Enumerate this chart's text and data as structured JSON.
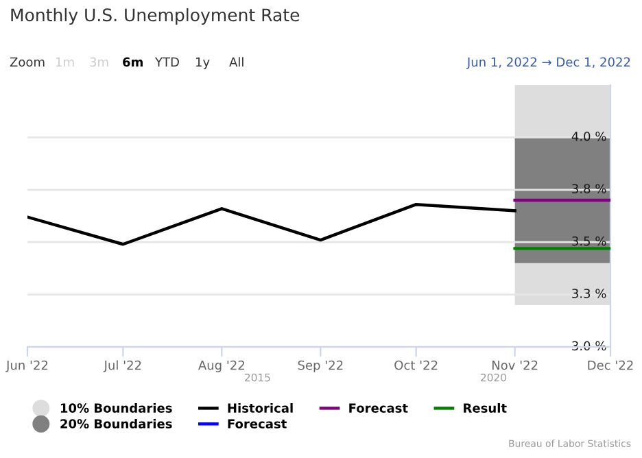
{
  "chart_data": {
    "type": "line",
    "title": "Monthly U.S. Unemployment Rate",
    "annotations": [
      "Zoom",
      "1m",
      "3m",
      "6m",
      "YTD",
      "1y",
      "All",
      "Jun 1, 2022 → Dec 1, 2022",
      "2015",
      "2020",
      "Bureau of Labor Statistics"
    ],
    "xlim": [
      "2022-06-01",
      "2022-12-01"
    ],
    "xticks": [
      {
        "value": "2022-06-01",
        "label": "Jun '22"
      },
      {
        "value": "2022-07-01",
        "label": "Jul '22"
      },
      {
        "value": "2022-08-01",
        "label": "Aug '22"
      },
      {
        "value": "2022-09-01",
        "label": "Sep '22"
      },
      {
        "value": "2022-10-01",
        "label": "Oct '22"
      },
      {
        "value": "2022-11-01",
        "label": "Nov '22"
      },
      {
        "value": "2022-12-01",
        "label": "Dec '22"
      }
    ],
    "ylim": [
      3.0,
      4.25
    ],
    "yticks": [
      {
        "value": 3.0,
        "label": "3.0 %"
      },
      {
        "value": 3.25,
        "label": "3.3 %"
      },
      {
        "value": 3.5,
        "label": "3.5 %"
      },
      {
        "value": 3.75,
        "label": "3.8 %"
      },
      {
        "value": 4.0,
        "label": "4.0 %"
      }
    ],
    "grid": "y",
    "legend": "bottom",
    "marker": "none",
    "line_style": "solid",
    "series": [
      {
        "name": "10% Boundaries",
        "type": "area",
        "color": "#dddddd",
        "x": [
          "2022-11-01",
          "2022-12-01"
        ],
        "values": [
          null,
          null
        ],
        "lower": [
          3.2,
          3.2
        ],
        "upper": [
          4.25,
          4.25
        ]
      },
      {
        "name": "20% Boundaries",
        "type": "area",
        "color": "#808080",
        "x": [
          "2022-11-01",
          "2022-12-01"
        ],
        "values": [
          null,
          null
        ],
        "lower": [
          3.4,
          3.4
        ],
        "upper": [
          4.0,
          4.0
        ]
      },
      {
        "name": "Historical",
        "color": "#000000",
        "x": [
          "2022-06-01",
          "2022-07-01",
          "2022-08-01",
          "2022-09-01",
          "2022-10-01",
          "2022-11-01"
        ],
        "values": [
          3.62,
          3.49,
          3.66,
          3.51,
          3.68,
          3.65
        ]
      },
      {
        "name": "Forecast",
        "type": "line",
        "color": "#0000ff"
      },
      {
        "name": "Forecast",
        "color": "#800080",
        "x": [
          "2022-11-01",
          "2022-12-01"
        ],
        "values": [
          3.7,
          3.7
        ]
      },
      {
        "name": "Result",
        "color": "#008000",
        "x": [
          "2022-11-01",
          "2022-12-01"
        ],
        "values": [
          3.47,
          3.47
        ]
      }
    ]
  }
}
